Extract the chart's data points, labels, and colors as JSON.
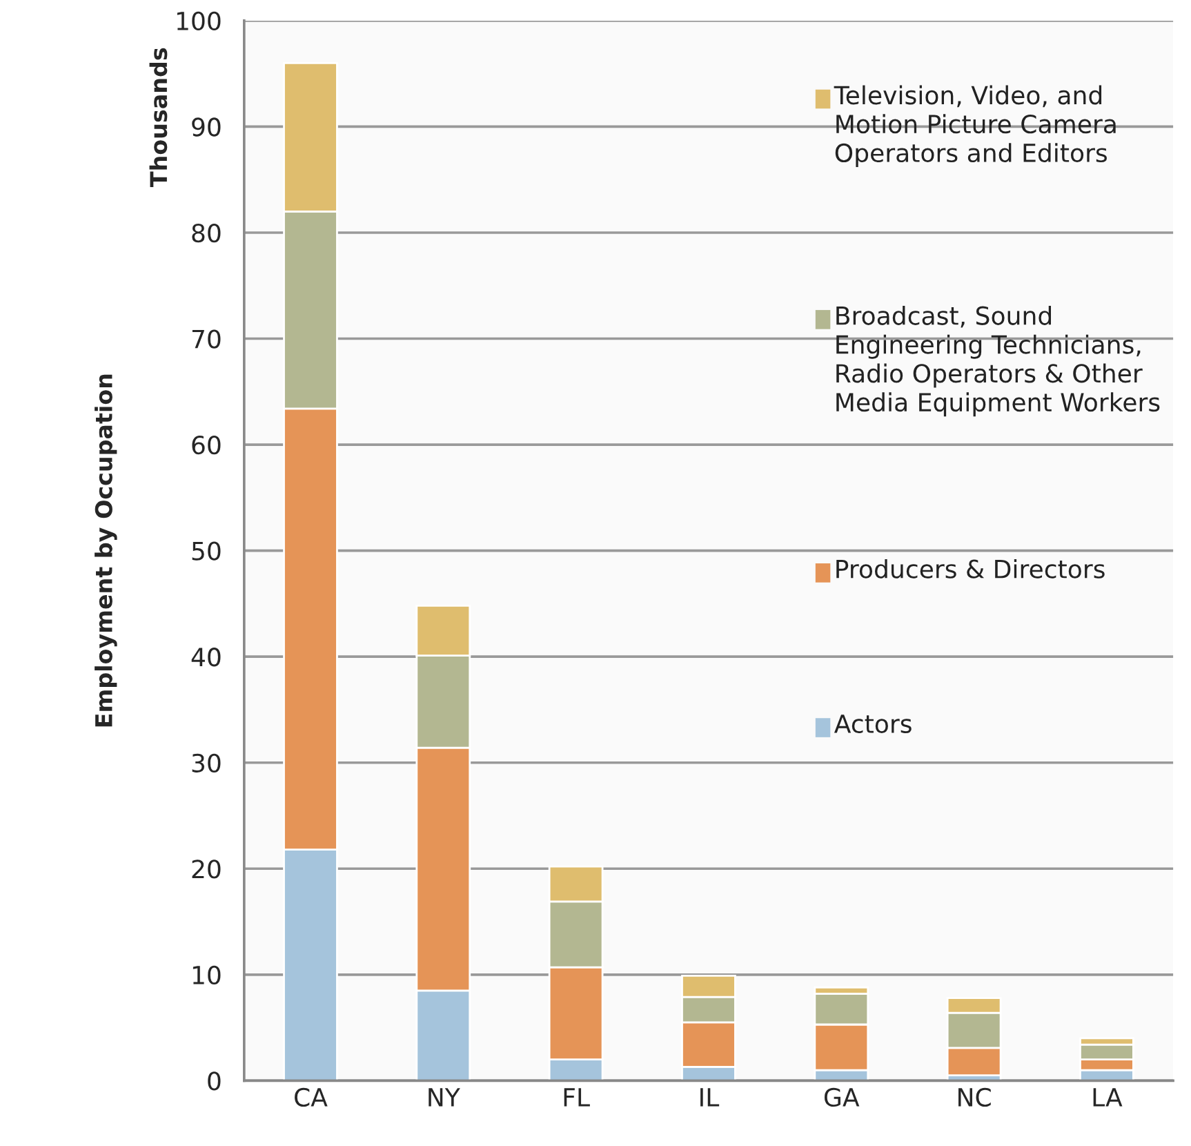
{
  "chart_data": {
    "type": "bar",
    "stacked": true,
    "ylabel": "Employment by Occupation",
    "annotations": [
      "Thousands"
    ],
    "categories": [
      "CA",
      "NY",
      "FL",
      "IL",
      "GA",
      "NC",
      "LA"
    ],
    "series": [
      {
        "name": "Actors",
        "color": "#a5c4dc",
        "values": [
          21.8,
          8.5,
          2.0,
          1.3,
          1.0,
          0.5,
          1.0
        ]
      },
      {
        "name": "Producers & Directors",
        "color": "#e59457",
        "values": [
          41.6,
          22.9,
          8.7,
          4.2,
          4.3,
          2.6,
          1.0
        ]
      },
      {
        "name": "Broadcast, Sound\nEngineering Technicians,\nRadio Operators & Other\nMedia Equipment Workers",
        "color": "#b3b791",
        "values": [
          18.6,
          8.7,
          6.2,
          2.4,
          2.9,
          3.3,
          1.4
        ]
      },
      {
        "name": "Television, Video, and\nMotion Picture Camera\nOperators and Editors",
        "color": "#dfbd6e",
        "values": [
          14.0,
          4.7,
          3.3,
          2.0,
          0.6,
          1.4,
          0.6
        ]
      }
    ],
    "ylim": [
      0,
      100
    ],
    "yticks": [
      0,
      10,
      20,
      30,
      40,
      50,
      60,
      70,
      80,
      90,
      100
    ],
    "grid": "y",
    "legend": "right"
  }
}
